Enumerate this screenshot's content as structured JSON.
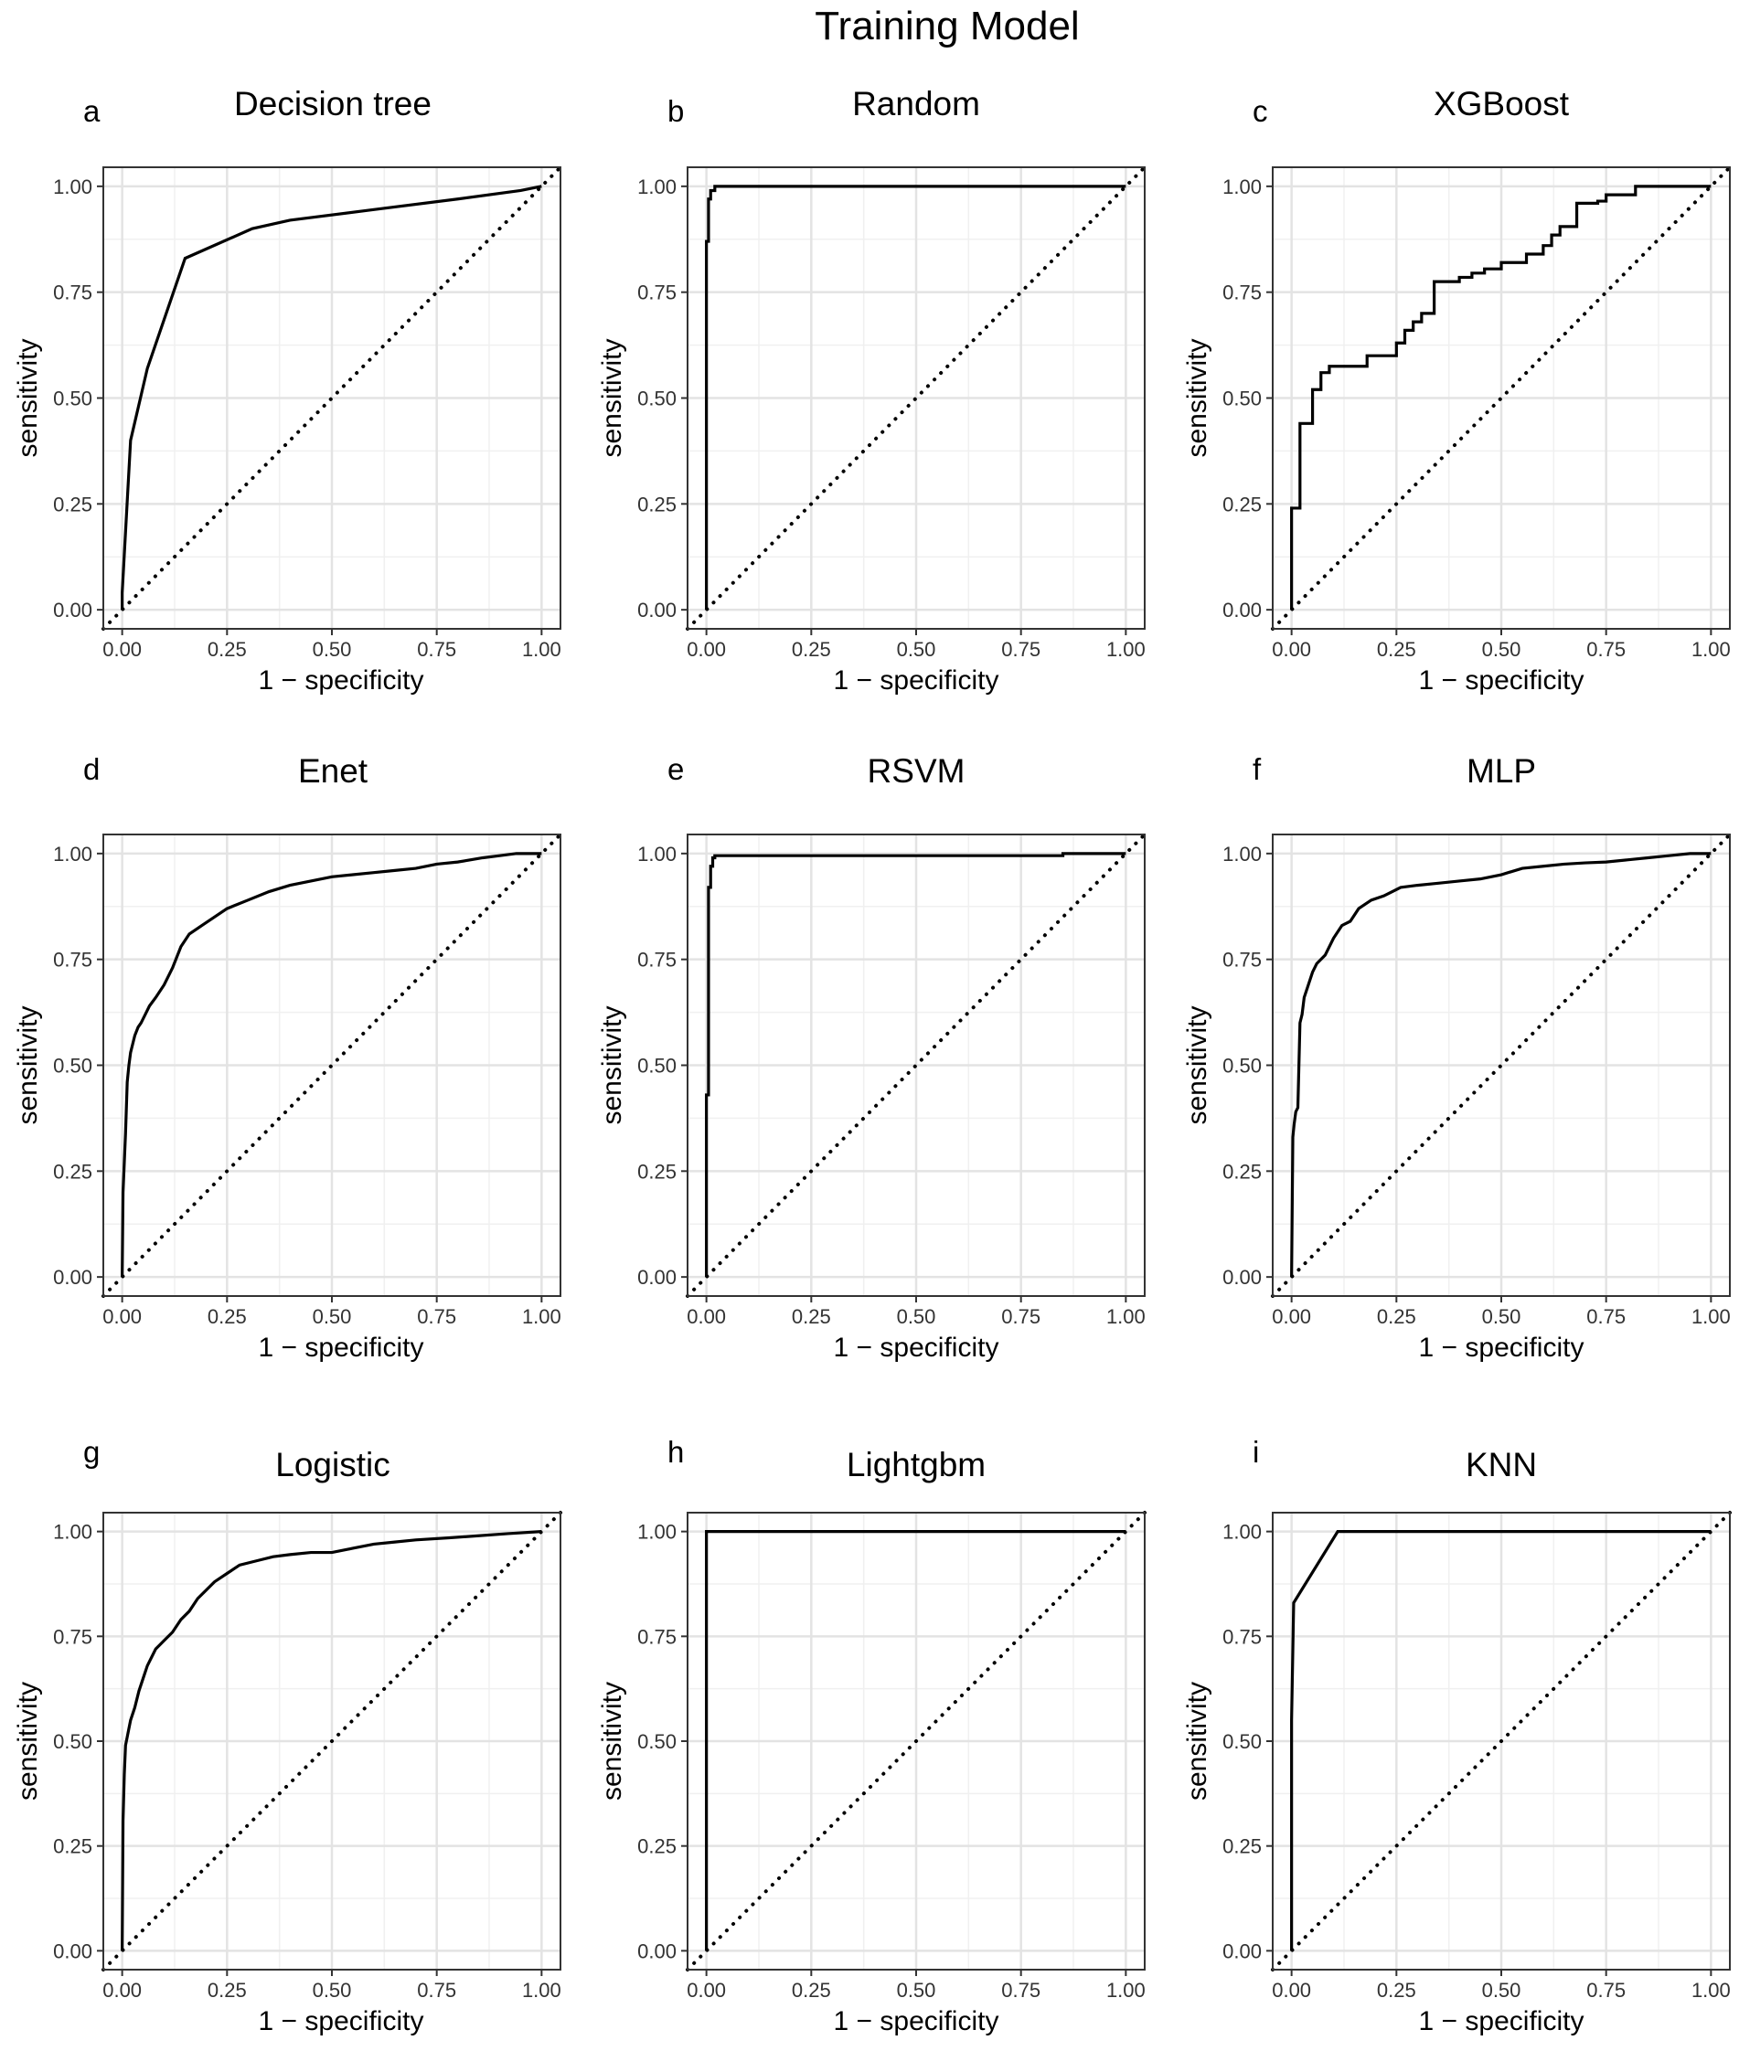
{
  "figure": {
    "title": "Training  Model"
  },
  "chart_data": [
    {
      "type": "line",
      "letter": "a",
      "title": "Decision tree",
      "xlabel": "1 − specificity",
      "ylabel": "sensitivity",
      "xlim": [
        0,
        1
      ],
      "ylim": [
        0,
        1
      ],
      "x_ticks": [
        "0.00",
        "0.25",
        "0.50",
        "0.75",
        "1.00"
      ],
      "y_ticks": [
        "0.00",
        "0.25",
        "0.50",
        "0.75",
        "1.00"
      ],
      "grid": true,
      "curve_step": false,
      "reference_line": "diagonal",
      "roc": {
        "x": [
          0,
          0.0,
          0.02,
          0.06,
          0.15,
          0.31,
          0.4,
          0.6,
          0.8,
          0.95,
          1.0
        ],
        "y": [
          0,
          0.04,
          0.4,
          0.57,
          0.83,
          0.9,
          0.92,
          0.945,
          0.97,
          0.99,
          1.0
        ]
      }
    },
    {
      "type": "line",
      "letter": "b",
      "title": "Random",
      "xlabel": "1 − specificity",
      "ylabel": "sensitivity",
      "xlim": [
        0,
        1
      ],
      "ylim": [
        0,
        1
      ],
      "x_ticks": [
        "0.00",
        "0.25",
        "0.50",
        "0.75",
        "1.00"
      ],
      "y_ticks": [
        "0.00",
        "0.25",
        "0.50",
        "0.75",
        "1.00"
      ],
      "grid": true,
      "curve_step": true,
      "reference_line": "diagonal",
      "roc": {
        "x": [
          0,
          0,
          0.005,
          0.005,
          0.01,
          0.01,
          0.02,
          0.02,
          1.0
        ],
        "y": [
          0,
          0.87,
          0.87,
          0.97,
          0.97,
          0.99,
          0.99,
          1.0,
          1.0
        ]
      }
    },
    {
      "type": "line",
      "letter": "c",
      "title": "XGBoost",
      "xlabel": "1 − specificity",
      "ylabel": "sensitivity",
      "xlim": [
        0,
        1
      ],
      "ylim": [
        0,
        1
      ],
      "x_ticks": [
        "0.00",
        "0.25",
        "0.50",
        "0.75",
        "1.00"
      ],
      "y_ticks": [
        "0.00",
        "0.25",
        "0.50",
        "0.75",
        "1.00"
      ],
      "grid": true,
      "curve_step": true,
      "reference_line": "diagonal",
      "roc": {
        "x": [
          0,
          0,
          0.02,
          0.02,
          0.05,
          0.05,
          0.07,
          0.07,
          0.09,
          0.09,
          0.18,
          0.18,
          0.25,
          0.25,
          0.27,
          0.27,
          0.29,
          0.29,
          0.31,
          0.31,
          0.34,
          0.34,
          0.4,
          0.4,
          0.43,
          0.43,
          0.46,
          0.46,
          0.5,
          0.5,
          0.56,
          0.56,
          0.6,
          0.6,
          0.62,
          0.62,
          0.64,
          0.64,
          0.68,
          0.68,
          0.73,
          0.73,
          0.75,
          0.75,
          0.82,
          0.82,
          0.88,
          0.88,
          1.0
        ],
        "y": [
          0,
          0.24,
          0.24,
          0.44,
          0.44,
          0.52,
          0.52,
          0.56,
          0.56,
          0.575,
          0.575,
          0.6,
          0.6,
          0.63,
          0.63,
          0.66,
          0.66,
          0.68,
          0.68,
          0.7,
          0.7,
          0.775,
          0.775,
          0.785,
          0.785,
          0.795,
          0.795,
          0.805,
          0.805,
          0.82,
          0.82,
          0.84,
          0.84,
          0.86,
          0.86,
          0.885,
          0.885,
          0.905,
          0.905,
          0.96,
          0.96,
          0.965,
          0.965,
          0.98,
          0.98,
          1.0,
          1.0,
          1.0,
          1.0
        ]
      }
    },
    {
      "type": "line",
      "letter": "d",
      "title": "Enet",
      "xlabel": "1 − specificity",
      "ylabel": "sensitivity",
      "xlim": [
        0,
        1
      ],
      "ylim": [
        0,
        1
      ],
      "x_ticks": [
        "0.00",
        "0.25",
        "0.50",
        "0.75",
        "1.00"
      ],
      "y_ticks": [
        "0.00",
        "0.25",
        "0.50",
        "0.75",
        "1.00"
      ],
      "grid": true,
      "curve_step": false,
      "reference_line": "diagonal",
      "roc": {
        "x": [
          0,
          0.002,
          0.005,
          0.008,
          0.012,
          0.016,
          0.02,
          0.025,
          0.03,
          0.038,
          0.045,
          0.055,
          0.065,
          0.08,
          0.1,
          0.12,
          0.14,
          0.16,
          0.19,
          0.22,
          0.25,
          0.3,
          0.35,
          0.4,
          0.45,
          0.5,
          0.55,
          0.6,
          0.65,
          0.7,
          0.75,
          0.8,
          0.86,
          0.9,
          0.94,
          1.0
        ],
        "y": [
          0,
          0.2,
          0.27,
          0.34,
          0.46,
          0.5,
          0.53,
          0.55,
          0.57,
          0.59,
          0.6,
          0.62,
          0.64,
          0.66,
          0.69,
          0.73,
          0.78,
          0.81,
          0.83,
          0.85,
          0.87,
          0.89,
          0.91,
          0.925,
          0.935,
          0.945,
          0.95,
          0.955,
          0.96,
          0.965,
          0.975,
          0.98,
          0.99,
          0.995,
          1.0,
          1.0
        ]
      }
    },
    {
      "type": "line",
      "letter": "e",
      "title": "RSVM",
      "xlabel": "1 − specificity",
      "ylabel": "sensitivity",
      "xlim": [
        0,
        1
      ],
      "ylim": [
        0,
        1
      ],
      "x_ticks": [
        "0.00",
        "0.25",
        "0.50",
        "0.75",
        "1.00"
      ],
      "y_ticks": [
        "0.00",
        "0.25",
        "0.50",
        "0.75",
        "1.00"
      ],
      "grid": true,
      "curve_step": true,
      "reference_line": "diagonal",
      "roc": {
        "x": [
          0,
          0,
          0.005,
          0.005,
          0.01,
          0.01,
          0.015,
          0.015,
          0.02,
          0.02,
          0.85,
          0.85,
          1.0
        ],
        "y": [
          0,
          0.43,
          0.43,
          0.92,
          0.92,
          0.97,
          0.97,
          0.99,
          0.99,
          0.995,
          0.995,
          1.0,
          1.0
        ]
      }
    },
    {
      "type": "line",
      "letter": "f",
      "title": "MLP",
      "xlabel": "1 − specificity",
      "ylabel": "sensitivity",
      "xlim": [
        0,
        1
      ],
      "ylim": [
        0,
        1
      ],
      "x_ticks": [
        "0.00",
        "0.25",
        "0.50",
        "0.75",
        "1.00"
      ],
      "y_ticks": [
        "0.00",
        "0.25",
        "0.50",
        "0.75",
        "1.00"
      ],
      "grid": true,
      "curve_step": false,
      "reference_line": "diagonal",
      "roc": {
        "x": [
          0,
          0.003,
          0.006,
          0.01,
          0.015,
          0.02,
          0.025,
          0.03,
          0.04,
          0.05,
          0.06,
          0.08,
          0.1,
          0.12,
          0.14,
          0.16,
          0.19,
          0.22,
          0.26,
          0.3,
          0.35,
          0.4,
          0.45,
          0.5,
          0.55,
          0.6,
          0.65,
          0.7,
          0.75,
          0.8,
          0.85,
          0.9,
          0.95,
          1.0
        ],
        "y": [
          0,
          0.33,
          0.36,
          0.39,
          0.4,
          0.6,
          0.62,
          0.66,
          0.69,
          0.72,
          0.74,
          0.76,
          0.8,
          0.83,
          0.84,
          0.87,
          0.89,
          0.9,
          0.92,
          0.925,
          0.93,
          0.935,
          0.94,
          0.95,
          0.965,
          0.97,
          0.975,
          0.978,
          0.98,
          0.985,
          0.99,
          0.995,
          1.0,
          1.0
        ]
      }
    },
    {
      "type": "line",
      "letter": "g",
      "title": "Logistic",
      "xlabel": "1 − specificity",
      "ylabel": "sensitivity",
      "xlim": [
        0,
        1
      ],
      "ylim": [
        0,
        1
      ],
      "x_ticks": [
        "0.00",
        "0.25",
        "0.50",
        "0.75",
        "1.00"
      ],
      "y_ticks": [
        "0.00",
        "0.25",
        "0.50",
        "0.75",
        "1.00"
      ],
      "grid": true,
      "curve_step": false,
      "reference_line": "diagonal",
      "roc": {
        "x": [
          0,
          0.002,
          0.005,
          0.008,
          0.012,
          0.016,
          0.02,
          0.03,
          0.04,
          0.05,
          0.06,
          0.07,
          0.08,
          0.09,
          0.1,
          0.12,
          0.14,
          0.16,
          0.18,
          0.2,
          0.22,
          0.25,
          0.28,
          0.32,
          0.36,
          0.4,
          0.45,
          0.5,
          0.55,
          0.6,
          0.65,
          0.7,
          0.78,
          0.85,
          0.92,
          1.0
        ],
        "y": [
          0,
          0.31,
          0.42,
          0.49,
          0.51,
          0.53,
          0.55,
          0.58,
          0.62,
          0.65,
          0.68,
          0.7,
          0.72,
          0.73,
          0.74,
          0.76,
          0.79,
          0.81,
          0.84,
          0.86,
          0.88,
          0.9,
          0.92,
          0.93,
          0.94,
          0.945,
          0.95,
          0.95,
          0.96,
          0.97,
          0.975,
          0.98,
          0.985,
          0.99,
          0.995,
          1.0
        ]
      }
    },
    {
      "type": "line",
      "letter": "h",
      "title": "Lightgbm",
      "xlabel": "1 − specificity",
      "ylabel": "sensitivity",
      "xlim": [
        0,
        1
      ],
      "ylim": [
        0,
        1
      ],
      "x_ticks": [
        "0.00",
        "0.25",
        "0.50",
        "0.75",
        "1.00"
      ],
      "y_ticks": [
        "0.00",
        "0.25",
        "0.50",
        "0.75",
        "1.00"
      ],
      "grid": true,
      "curve_step": true,
      "reference_line": "diagonal",
      "roc": {
        "x": [
          0,
          0,
          1.0
        ],
        "y": [
          0,
          1.0,
          1.0
        ]
      }
    },
    {
      "type": "line",
      "letter": "i",
      "title": "KNN",
      "xlabel": "1 − specificity",
      "ylabel": "sensitivity",
      "xlim": [
        0,
        1
      ],
      "ylim": [
        0,
        1
      ],
      "x_ticks": [
        "0.00",
        "0.25",
        "0.50",
        "0.75",
        "1.00"
      ],
      "y_ticks": [
        "0.00",
        "0.25",
        "0.50",
        "0.75",
        "1.00"
      ],
      "grid": true,
      "curve_step": false,
      "reference_line": "diagonal",
      "roc": {
        "x": [
          0,
          0.0,
          0.005,
          0.11,
          1.0
        ],
        "y": [
          0,
          0.55,
          0.83,
          1.0,
          1.0
        ]
      }
    }
  ]
}
